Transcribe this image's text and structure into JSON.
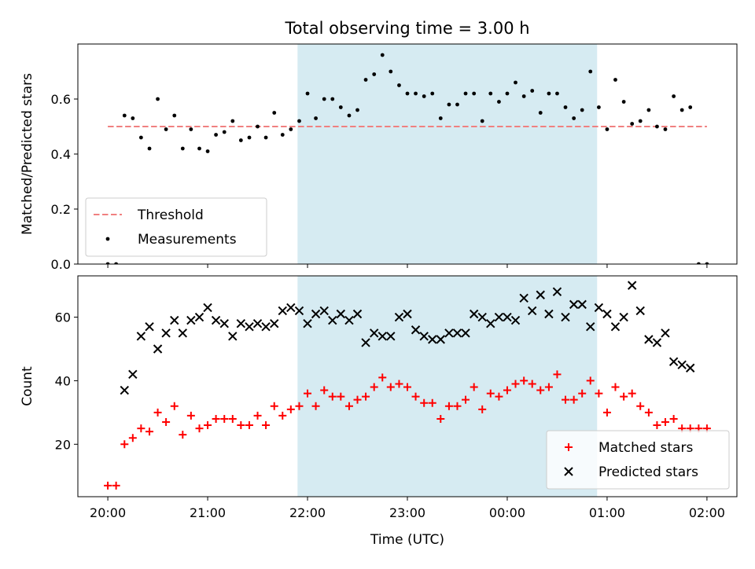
{
  "figure": {
    "title": "Total observing time = 3.00 h",
    "xlabel": "Time (UTC)"
  },
  "chart_data": [
    {
      "type": "scatter",
      "ylabel": "Matched/Predicted stars",
      "x_axis_unit": "hours after 20:00 UTC",
      "x_range": [
        -0.3,
        6.3
      ],
      "x_ticks": [
        0,
        1,
        2,
        3,
        4,
        5,
        6
      ],
      "x_tick_labels": [
        "20:00",
        "21:00",
        "22:00",
        "23:00",
        "00:00",
        "01:00",
        "02:00"
      ],
      "ylim": [
        0.0,
        0.8
      ],
      "y_ticks": [
        0.0,
        0.2,
        0.4,
        0.6
      ],
      "y_tick_labels": [
        "0.0",
        "0.2",
        "0.4",
        "0.6"
      ],
      "shaded_interval": {
        "start": 1.9,
        "end": 4.9,
        "color": "#add8e6"
      },
      "threshold": {
        "name": "Threshold",
        "value": 0.5,
        "x_start": 0.0,
        "x_end": 6.0,
        "color": "#f08080"
      },
      "legend_position": "lower-left",
      "series": [
        {
          "name": "Measurements",
          "color": "#000000",
          "x": [
            0.0,
            0.083,
            0.167,
            0.25,
            0.333,
            0.417,
            0.5,
            0.583,
            0.667,
            0.75,
            0.833,
            0.917,
            1.0,
            1.083,
            1.167,
            1.25,
            1.333,
            1.417,
            1.5,
            1.583,
            1.667,
            1.75,
            1.833,
            1.917,
            2.0,
            2.083,
            2.167,
            2.25,
            2.333,
            2.417,
            2.5,
            2.583,
            2.667,
            2.75,
            2.833,
            2.917,
            3.0,
            3.083,
            3.167,
            3.25,
            3.333,
            3.417,
            3.5,
            3.583,
            3.667,
            3.75,
            3.833,
            3.917,
            4.0,
            4.083,
            4.167,
            4.25,
            4.333,
            4.417,
            4.5,
            4.583,
            4.667,
            4.75,
            4.833,
            4.917,
            5.0,
            5.083,
            5.167,
            5.25,
            5.333,
            5.417,
            5.5,
            5.583,
            5.667,
            5.75,
            5.833,
            5.917,
            6.0
          ],
          "y": [
            0.0,
            0.0,
            0.54,
            0.53,
            0.46,
            0.42,
            0.6,
            0.49,
            0.54,
            0.42,
            0.49,
            0.42,
            0.41,
            0.47,
            0.48,
            0.52,
            0.45,
            0.46,
            0.5,
            0.46,
            0.55,
            0.47,
            0.49,
            0.52,
            0.62,
            0.53,
            0.6,
            0.6,
            0.57,
            0.54,
            0.56,
            0.67,
            0.69,
            0.76,
            0.7,
            0.65,
            0.62,
            0.62,
            0.61,
            0.62,
            0.53,
            0.58,
            0.58,
            0.62,
            0.62,
            0.52,
            0.62,
            0.59,
            0.62,
            0.66,
            0.61,
            0.63,
            0.55,
            0.62,
            0.62,
            0.57,
            0.53,
            0.56,
            0.7,
            0.57,
            0.49,
            0.67,
            0.59,
            0.51,
            0.52,
            0.56,
            0.5,
            0.49,
            0.61,
            0.56,
            0.57,
            0.0,
            0.0
          ]
        }
      ]
    },
    {
      "type": "scatter",
      "ylabel": "Count",
      "x_axis_unit": "hours after 20:00 UTC",
      "x_range": [
        -0.3,
        6.3
      ],
      "x_ticks": [
        0,
        1,
        2,
        3,
        4,
        5,
        6
      ],
      "x_tick_labels": [
        "20:00",
        "21:00",
        "22:00",
        "23:00",
        "00:00",
        "01:00",
        "02:00"
      ],
      "ylim": [
        3.5,
        73.0
      ],
      "y_ticks": [
        20,
        40,
        60
      ],
      "y_tick_labels": [
        "20",
        "40",
        "60"
      ],
      "shaded_interval": {
        "start": 1.9,
        "end": 4.9,
        "color": "#add8e6"
      },
      "legend_position": "lower-right",
      "series": [
        {
          "name": "Matched stars",
          "marker": "plus",
          "color": "#ff0000",
          "x": [
            0.0,
            0.083,
            0.167,
            0.25,
            0.333,
            0.417,
            0.5,
            0.583,
            0.667,
            0.75,
            0.833,
            0.917,
            1.0,
            1.083,
            1.167,
            1.25,
            1.333,
            1.417,
            1.5,
            1.583,
            1.667,
            1.75,
            1.833,
            1.917,
            2.0,
            2.083,
            2.167,
            2.25,
            2.333,
            2.417,
            2.5,
            2.583,
            2.667,
            2.75,
            2.833,
            2.917,
            3.0,
            3.083,
            3.167,
            3.25,
            3.333,
            3.417,
            3.5,
            3.583,
            3.667,
            3.75,
            3.833,
            3.917,
            4.0,
            4.083,
            4.167,
            4.25,
            4.333,
            4.417,
            4.5,
            4.583,
            4.667,
            4.75,
            4.833,
            4.917,
            5.0,
            5.083,
            5.167,
            5.25,
            5.333,
            5.417,
            5.5,
            5.583,
            5.667,
            5.75,
            5.833,
            5.917,
            6.0
          ],
          "y": [
            7,
            7,
            20,
            22,
            25,
            24,
            30,
            27,
            32,
            23,
            29,
            25,
            26,
            28,
            28,
            28,
            26,
            26,
            29,
            26,
            32,
            29,
            31,
            32,
            36,
            32,
            37,
            35,
            35,
            32,
            34,
            35,
            38,
            41,
            38,
            39,
            38,
            35,
            33,
            33,
            28,
            32,
            32,
            34,
            38,
            31,
            36,
            35,
            37,
            39,
            40,
            39,
            37,
            38,
            42,
            34,
            34,
            36,
            40,
            36,
            30,
            38,
            35,
            36,
            32,
            30,
            26,
            27,
            28,
            25,
            25,
            25,
            25
          ]
        },
        {
          "name": "Predicted stars",
          "marker": "x",
          "color": "#000000",
          "x": [
            0.167,
            0.25,
            0.333,
            0.417,
            0.5,
            0.583,
            0.667,
            0.75,
            0.833,
            0.917,
            1.0,
            1.083,
            1.167,
            1.25,
            1.333,
            1.417,
            1.5,
            1.583,
            1.667,
            1.75,
            1.833,
            1.917,
            2.0,
            2.083,
            2.167,
            2.25,
            2.333,
            2.417,
            2.5,
            2.583,
            2.667,
            2.75,
            2.833,
            2.917,
            3.0,
            3.083,
            3.167,
            3.25,
            3.333,
            3.417,
            3.5,
            3.583,
            3.667,
            3.75,
            3.833,
            3.917,
            4.0,
            4.083,
            4.167,
            4.25,
            4.333,
            4.417,
            4.5,
            4.583,
            4.667,
            4.75,
            4.833,
            4.917,
            5.0,
            5.083,
            5.167,
            5.25,
            5.333,
            5.417,
            5.5,
            5.583,
            5.667,
            5.75,
            5.833
          ],
          "y": [
            37,
            42,
            54,
            57,
            50,
            55,
            59,
            55,
            59,
            60,
            63,
            59,
            58,
            54,
            58,
            57,
            58,
            57,
            58,
            62,
            63,
            62,
            58,
            61,
            62,
            59,
            61,
            59,
            61,
            52,
            55,
            54,
            54,
            60,
            61,
            56,
            54,
            53,
            53,
            55,
            55,
            55,
            61,
            60,
            58,
            60,
            60,
            59,
            66,
            62,
            67,
            61,
            68,
            60,
            64,
            64,
            57,
            63,
            61,
            57,
            60,
            70,
            62,
            53,
            52,
            55,
            46,
            45,
            44
          ]
        }
      ]
    }
  ]
}
